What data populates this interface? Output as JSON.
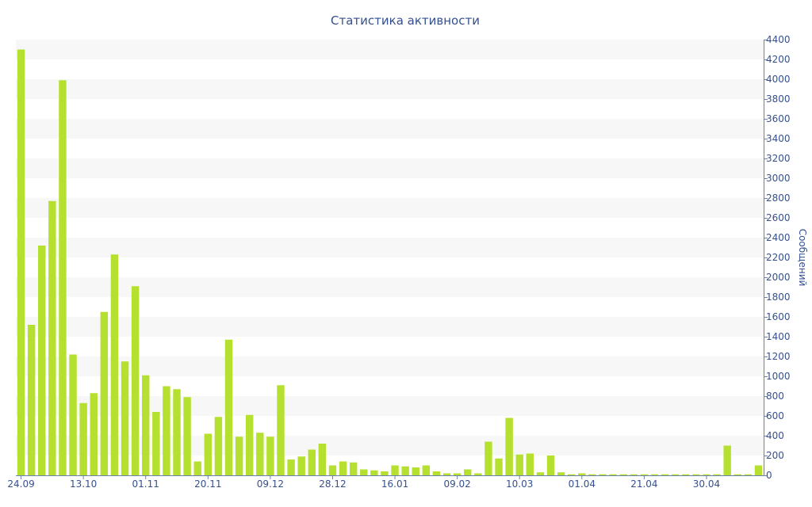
{
  "colors": {
    "bar": "#b5e02f",
    "text": "#34508f",
    "band": "#f7f7f7",
    "axis": "#6b7fb0"
  },
  "chart_data": {
    "type": "bar",
    "title": "Статистика активности",
    "ylabel": "Сообщений",
    "y_axis_position": "right",
    "ylim": [
      0,
      4400
    ],
    "ytick_step": 200,
    "ytick_labels": [
      "0",
      "200",
      "400",
      "600",
      "800",
      "1000",
      "1200",
      "1400",
      "1600",
      "1800",
      "2000",
      "2200",
      "2400",
      "2600",
      "2800",
      "3000",
      "3200",
      "3400",
      "3600",
      "3800",
      "4000",
      "4200",
      "4400"
    ],
    "grid": "horizontal alternating bands",
    "legend": "none",
    "x_tick_labels": [
      {
        "label": "24.09",
        "index": 0
      },
      {
        "label": "13.10",
        "index": 6
      },
      {
        "label": "01.11",
        "index": 12
      },
      {
        "label": "20.11",
        "index": 18
      },
      {
        "label": "09.12",
        "index": 24
      },
      {
        "label": "28.12",
        "index": 30
      },
      {
        "label": "16.01",
        "index": 36
      },
      {
        "label": "09.02",
        "index": 42
      },
      {
        "label": "10.03",
        "index": 48
      },
      {
        "label": "01.04",
        "index": 54
      },
      {
        "label": "21.04",
        "index": 60
      },
      {
        "label": "30.04",
        "index": 66
      }
    ],
    "values": [
      4300,
      1520,
      2320,
      2770,
      3990,
      1220,
      730,
      830,
      1650,
      2230,
      1150,
      1910,
      1010,
      640,
      900,
      870,
      790,
      140,
      420,
      590,
      1370,
      390,
      610,
      430,
      390,
      910,
      160,
      190,
      260,
      320,
      100,
      140,
      130,
      60,
      50,
      40,
      100,
      90,
      80,
      100,
      40,
      20,
      20,
      60,
      20,
      340,
      170,
      580,
      210,
      220,
      30,
      200,
      30,
      10,
      20,
      10,
      10,
      10,
      10,
      10,
      10,
      10,
      10,
      10,
      10,
      10,
      10,
      10,
      300,
      10,
      10,
      100
    ]
  }
}
